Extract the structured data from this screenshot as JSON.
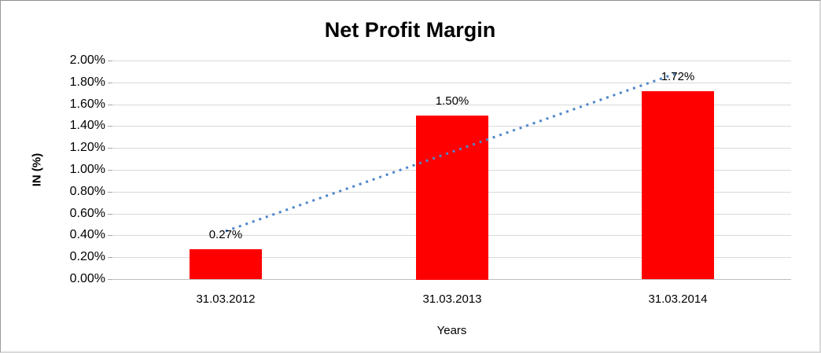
{
  "chart_data": {
    "type": "bar",
    "title": "Net Profit Margin",
    "xlabel": "Years",
    "ylabel": "IN (%)",
    "categories": [
      "31.03.2012",
      "31.03.2013",
      "31.03.2014"
    ],
    "values": [
      0.27,
      1.5,
      1.72
    ],
    "data_labels": [
      "0.27%",
      "1.50%",
      "1.72%"
    ],
    "ylim": [
      0,
      2
    ],
    "yticks": [
      0,
      0.2,
      0.4,
      0.6,
      0.8,
      1.0,
      1.2,
      1.4,
      1.6,
      1.8,
      2.0
    ],
    "ytick_labels": [
      "0.00%",
      "0.20%",
      "0.40%",
      "0.60%",
      "0.80%",
      "1.00%",
      "1.20%",
      "1.40%",
      "1.60%",
      "1.80%",
      "2.00%"
    ],
    "grid": true,
    "legend": "none",
    "colors": {
      "bar": "#FF0000",
      "gridline": "#D9D9D9",
      "axis_line": "#BFBFBF",
      "tick_mark": "#A6A6A6",
      "text": "#000000",
      "trendline": "#4E86C8"
    },
    "trendline": {
      "type": "linear_regression",
      "style": "dotted",
      "color": "#4E86C8",
      "start_value": 0.4383,
      "end_value": 1.8883
    }
  }
}
